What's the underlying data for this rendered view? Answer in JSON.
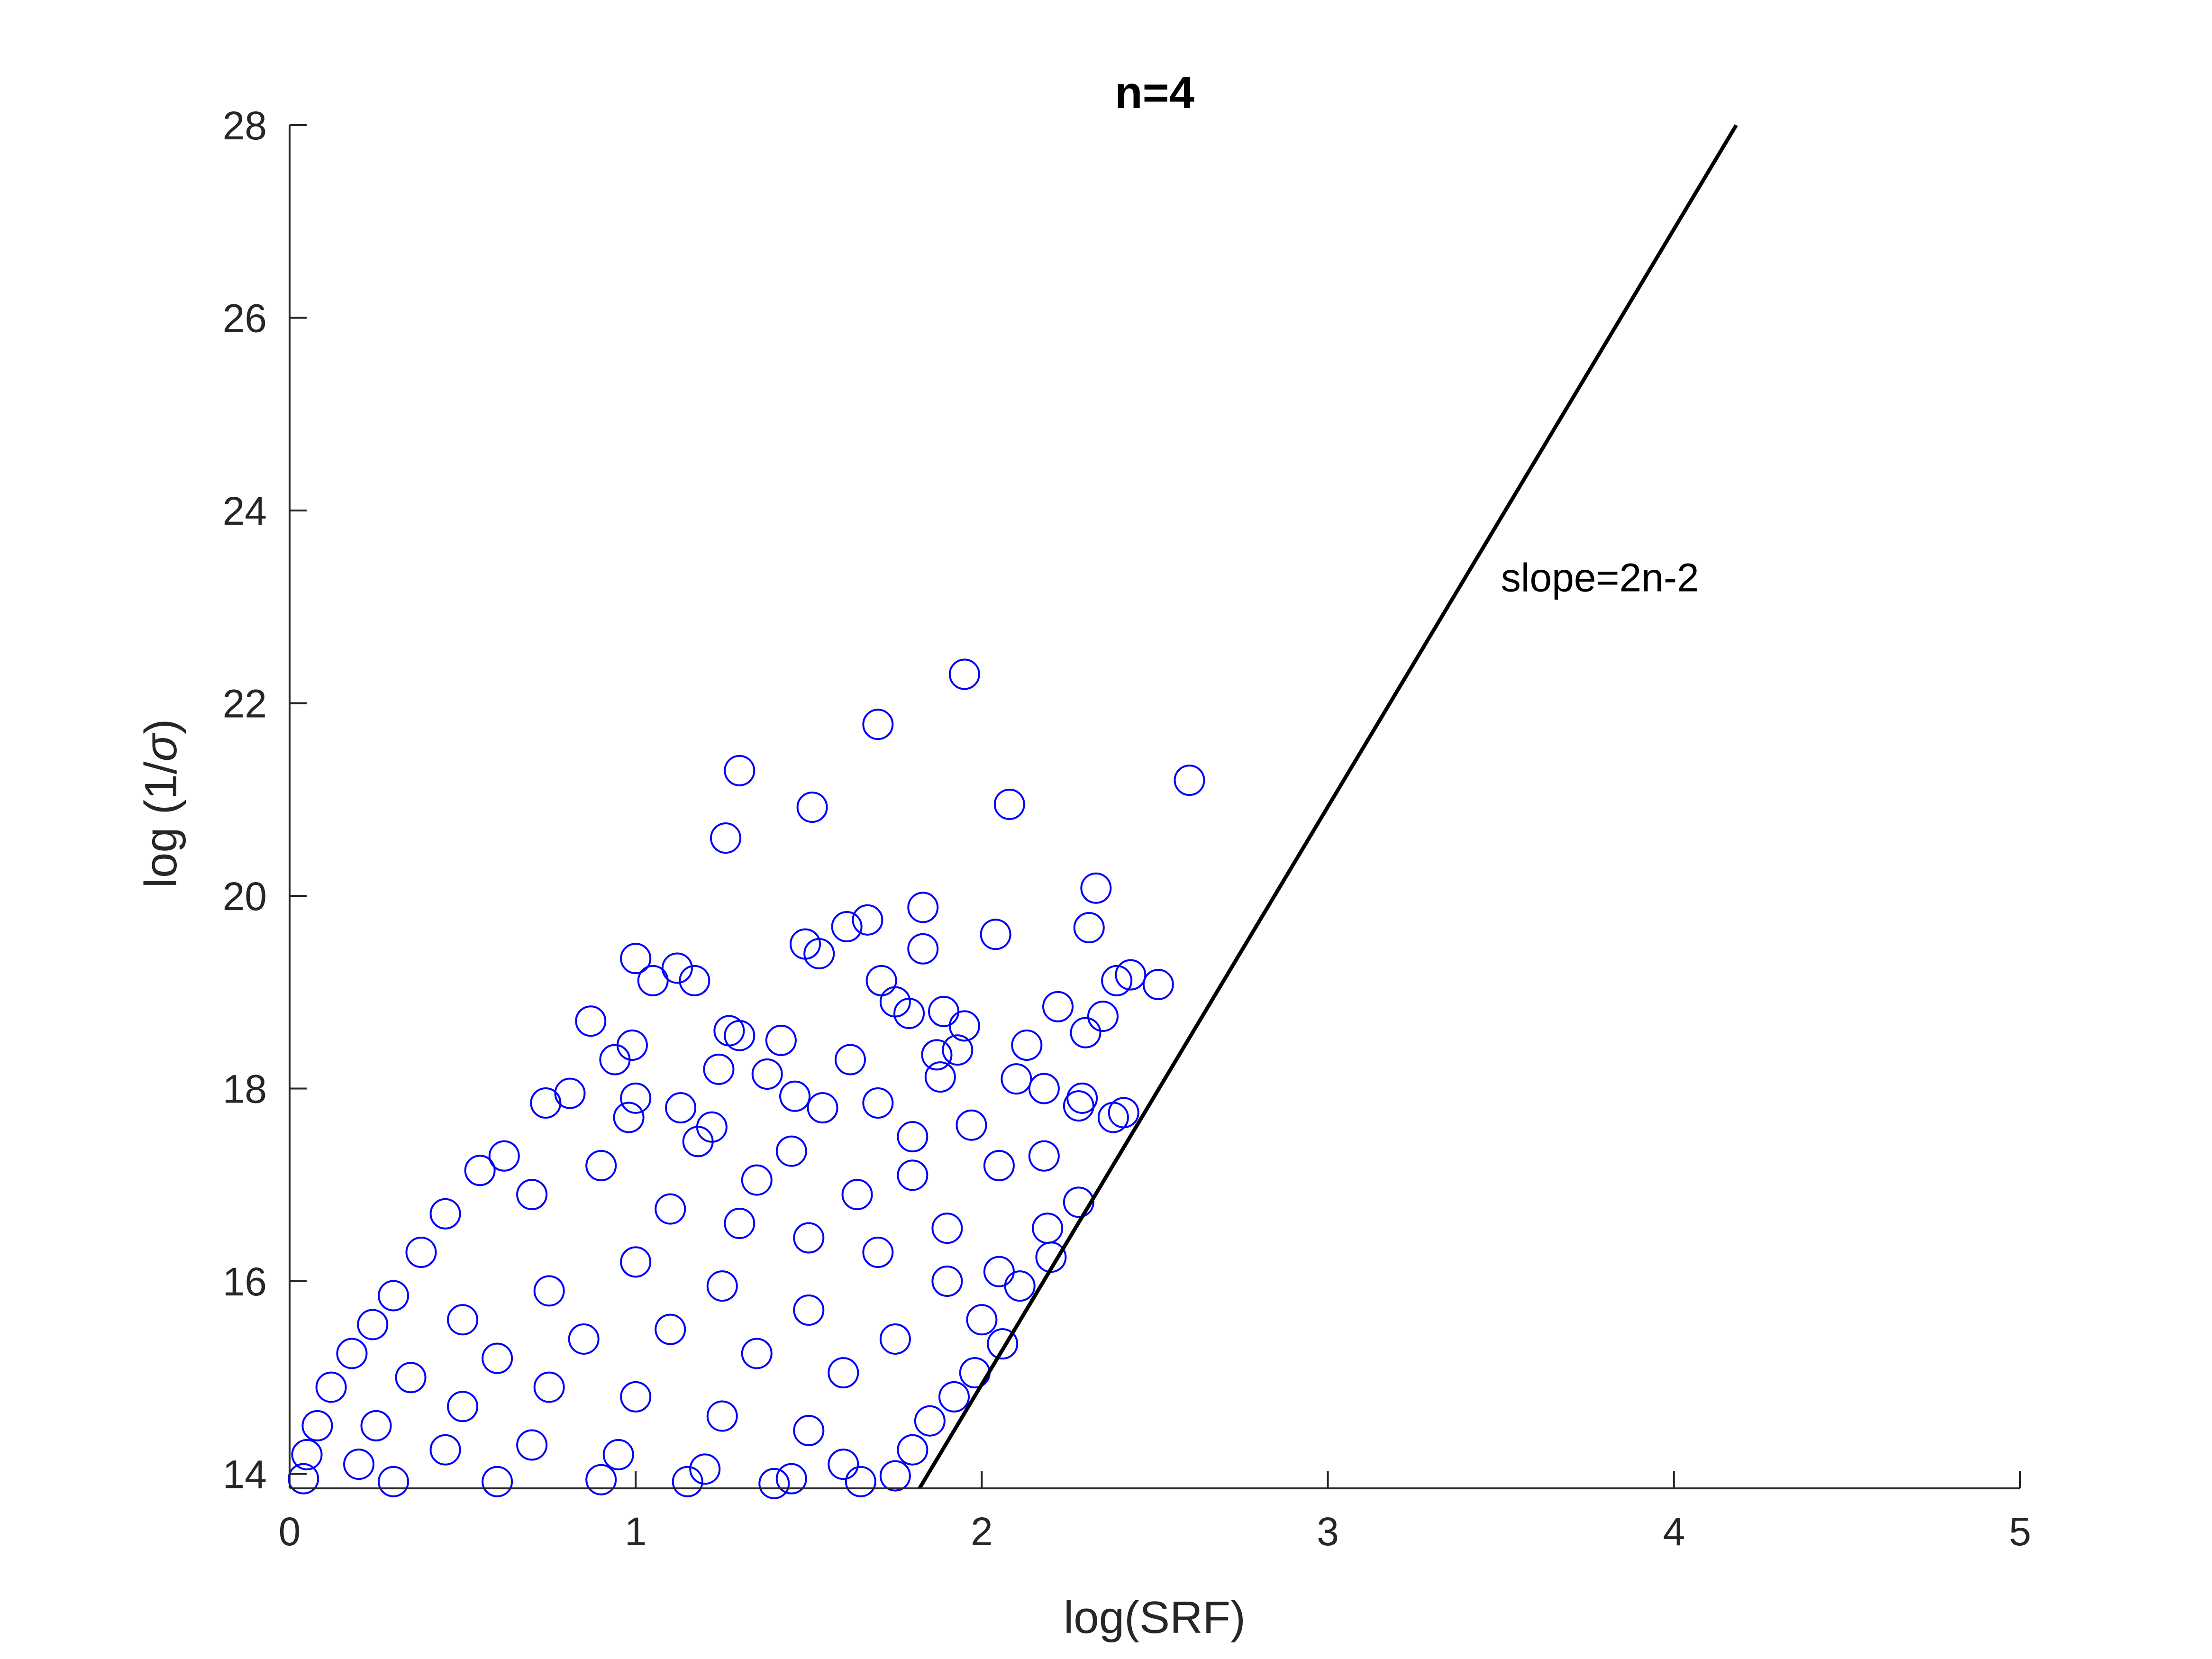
{
  "chart_data": {
    "type": "scatter",
    "title": "n=4",
    "xlabel": "log(SRF)",
    "ylabel_prefix": "log (1/",
    "ylabel_symbol": "σ",
    "ylabel_suffix": ")",
    "xlim": [
      0,
      5
    ],
    "ylim": [
      13.85,
      28
    ],
    "xticks": [
      0,
      1,
      2,
      3,
      4,
      5
    ],
    "xtick_labels": [
      "0",
      "1",
      "2",
      "3",
      "4",
      "5"
    ],
    "yticks": [
      14,
      16,
      18,
      20,
      22,
      24,
      26,
      28
    ],
    "ytick_labels": [
      "14",
      "16",
      "18",
      "20",
      "22",
      "24",
      "26",
      "28"
    ],
    "grid": false,
    "marker": "open-circle",
    "marker_color": "#0000ff",
    "line_color": "#000000",
    "axis_color": "#262626",
    "series": [
      {
        "values": [
          [
            1.95,
            22.3
          ],
          [
            1.7,
            21.78
          ],
          [
            1.3,
            21.3
          ],
          [
            2.6,
            21.2
          ],
          [
            1.51,
            20.92
          ],
          [
            2.08,
            20.95
          ],
          [
            1.26,
            20.6
          ],
          [
            2.33,
            20.08
          ],
          [
            1.83,
            19.88
          ],
          [
            1.67,
            19.75
          ],
          [
            1.61,
            19.68
          ],
          [
            2.04,
            19.6
          ],
          [
            2.31,
            19.67
          ],
          [
            1.49,
            19.5
          ],
          [
            1.53,
            19.4
          ],
          [
            1.83,
            19.45
          ],
          [
            1.0,
            19.35
          ],
          [
            1.12,
            19.25
          ],
          [
            1.17,
            19.12
          ],
          [
            1.05,
            19.12
          ],
          [
            1.71,
            19.12
          ],
          [
            2.39,
            19.12
          ],
          [
            2.43,
            19.18
          ],
          [
            2.51,
            19.08
          ],
          [
            1.75,
            18.9
          ],
          [
            1.79,
            18.78
          ],
          [
            1.89,
            18.8
          ],
          [
            2.22,
            18.85
          ],
          [
            0.87,
            18.7
          ],
          [
            1.95,
            18.65
          ],
          [
            2.35,
            18.75
          ],
          [
            1.27,
            18.6
          ],
          [
            1.3,
            18.55
          ],
          [
            1.42,
            18.5
          ],
          [
            1.93,
            18.4
          ],
          [
            1.87,
            18.35
          ],
          [
            2.13,
            18.45
          ],
          [
            2.3,
            18.58
          ],
          [
            0.99,
            18.45
          ],
          [
            0.94,
            18.3
          ],
          [
            1.62,
            18.3
          ],
          [
            1.24,
            18.2
          ],
          [
            1.38,
            18.15
          ],
          [
            1.88,
            18.12
          ],
          [
            2.1,
            18.1
          ],
          [
            2.18,
            18.0
          ],
          [
            2.29,
            17.9
          ],
          [
            2.28,
            17.82
          ],
          [
            2.38,
            17.7
          ],
          [
            2.41,
            17.75
          ],
          [
            1.97,
            17.62
          ],
          [
            1.8,
            17.5
          ],
          [
            1.54,
            17.8
          ],
          [
            1.7,
            17.85
          ],
          [
            1.46,
            17.92
          ],
          [
            0.81,
            17.95
          ],
          [
            0.74,
            17.85
          ],
          [
            1.13,
            17.8
          ],
          [
            1.0,
            17.9
          ],
          [
            1.22,
            17.6
          ],
          [
            0.98,
            17.7
          ],
          [
            2.05,
            17.2
          ],
          [
            2.18,
            17.3
          ],
          [
            2.28,
            16.82
          ],
          [
            2.19,
            16.55
          ],
          [
            2.2,
            16.25
          ],
          [
            2.11,
            15.95
          ],
          [
            2.05,
            16.1
          ],
          [
            1.9,
            16.55
          ],
          [
            1.8,
            17.1
          ],
          [
            1.64,
            16.9
          ],
          [
            1.45,
            17.35
          ],
          [
            1.35,
            17.05
          ],
          [
            1.18,
            17.45
          ],
          [
            0.62,
            17.3
          ],
          [
            0.55,
            17.15
          ],
          [
            0.45,
            16.7
          ],
          [
            0.38,
            16.3
          ],
          [
            0.3,
            15.85
          ],
          [
            0.24,
            15.55
          ],
          [
            0.18,
            15.25
          ],
          [
            0.12,
            14.9
          ],
          [
            0.08,
            14.5
          ],
          [
            0.05,
            14.2
          ],
          [
            0.04,
            13.95
          ],
          [
            0.7,
            16.9
          ],
          [
            0.9,
            17.2
          ],
          [
            1.1,
            16.75
          ],
          [
            1.3,
            16.6
          ],
          [
            1.5,
            16.45
          ],
          [
            1.7,
            16.3
          ],
          [
            1.9,
            16.0
          ],
          [
            2.0,
            15.6
          ],
          [
            2.06,
            15.35
          ],
          [
            1.98,
            15.05
          ],
          [
            1.92,
            14.8
          ],
          [
            1.85,
            14.55
          ],
          [
            1.8,
            14.25
          ],
          [
            1.75,
            13.98
          ],
          [
            1.6,
            14.1
          ],
          [
            0.5,
            15.6
          ],
          [
            0.75,
            15.9
          ],
          [
            1.0,
            16.2
          ],
          [
            1.25,
            15.95
          ],
          [
            1.5,
            15.7
          ],
          [
            1.75,
            15.4
          ],
          [
            0.35,
            15.0
          ],
          [
            0.6,
            15.2
          ],
          [
            0.85,
            15.4
          ],
          [
            1.1,
            15.5
          ],
          [
            1.35,
            15.25
          ],
          [
            1.6,
            15.05
          ],
          [
            0.25,
            14.5
          ],
          [
            0.5,
            14.7
          ],
          [
            0.75,
            14.9
          ],
          [
            1.0,
            14.8
          ],
          [
            1.25,
            14.6
          ],
          [
            1.5,
            14.45
          ],
          [
            0.2,
            14.1
          ],
          [
            0.45,
            14.25
          ],
          [
            0.7,
            14.3
          ],
          [
            0.95,
            14.2
          ],
          [
            1.2,
            14.05
          ],
          [
            1.45,
            13.95
          ],
          [
            0.3,
            13.92
          ],
          [
            0.6,
            13.92
          ],
          [
            0.9,
            13.94
          ],
          [
            1.15,
            13.92
          ],
          [
            1.4,
            13.9
          ],
          [
            1.65,
            13.92
          ]
        ]
      }
    ],
    "reference_line": {
      "label": "slope=2n-2",
      "from": [
        1.82,
        13.85
      ],
      "to": [
        4.18,
        28
      ],
      "label_at": [
        3.5,
        23.3
      ]
    }
  }
}
